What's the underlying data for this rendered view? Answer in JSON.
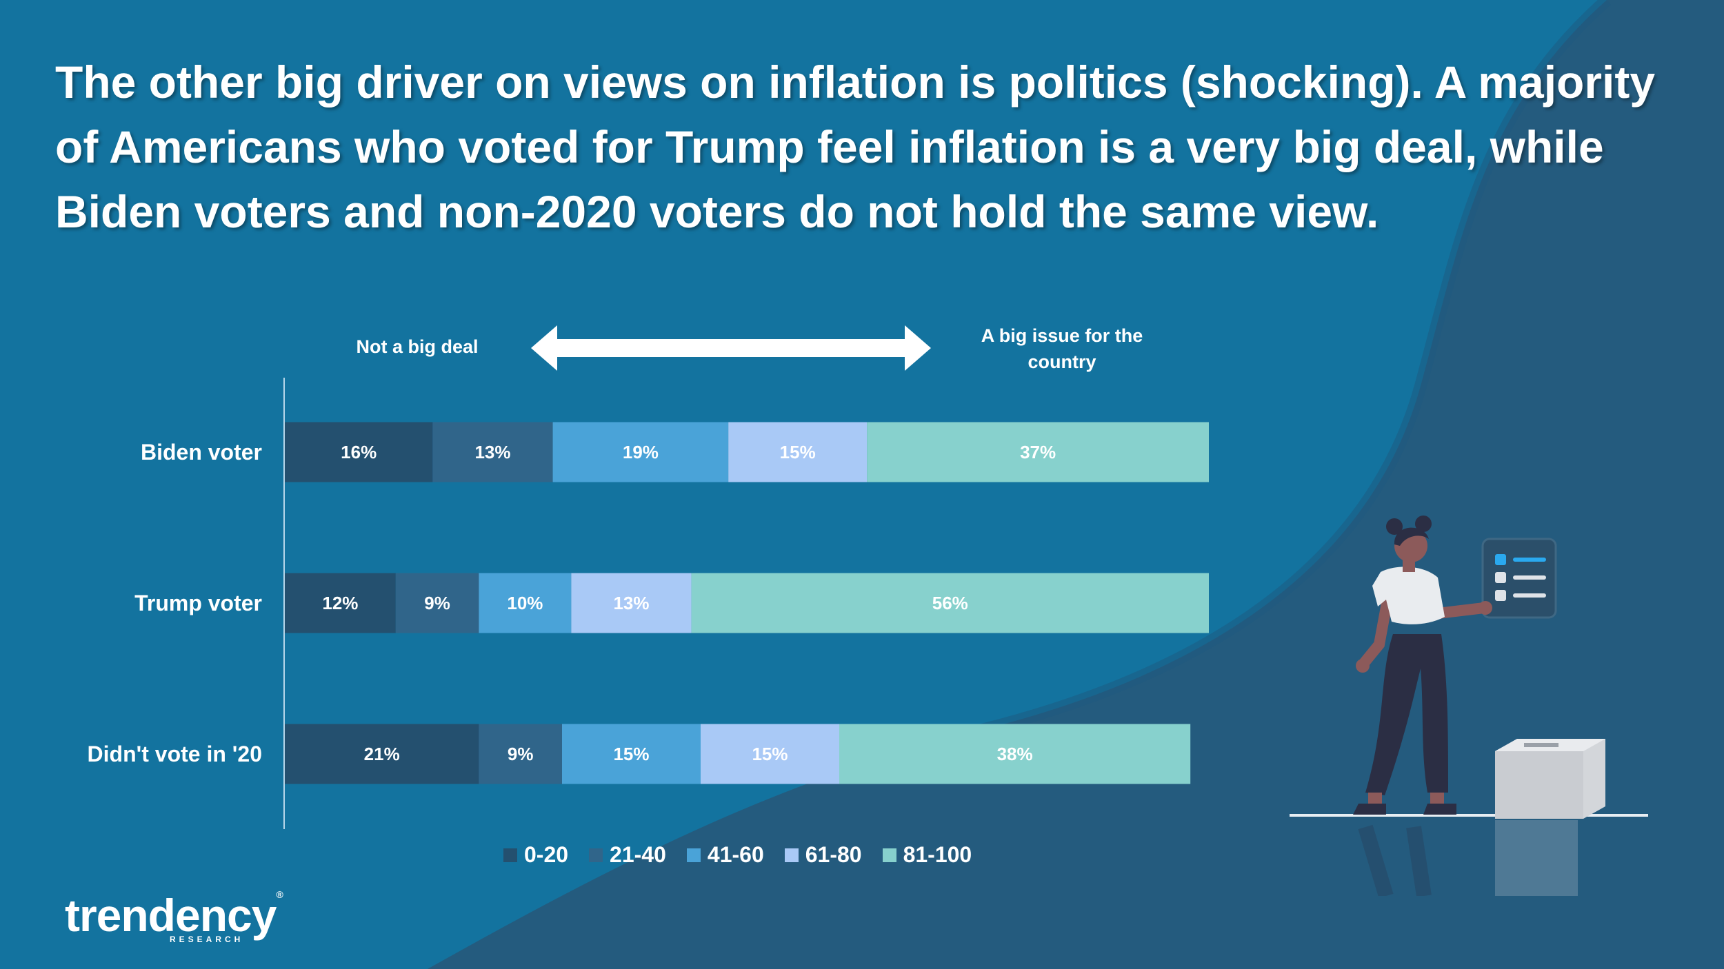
{
  "headline": "The other big driver on views on inflation is politics (shocking). A majority of Americans who voted for Trump feel inflation is a very big deal, while Biden voters and non-2020 voters do not hold the same view.",
  "scale": {
    "left_label": "Not a big deal",
    "right_label": "A big issue for the country"
  },
  "brand": {
    "name": "trendency",
    "sub": "RESEARCH"
  },
  "colors": {
    "background": "#13739f",
    "background_dark": "#245b7e",
    "s1": "#24506f",
    "s2": "#30658a",
    "s3": "#4aa3d8",
    "s4": "#a9c9f6",
    "s5": "#87d1cd"
  },
  "chart_data": {
    "type": "bar",
    "orientation": "horizontal",
    "stacked": true,
    "categories": [
      "Biden voter",
      "Trump voter",
      "Didn't vote in '20"
    ],
    "series": [
      {
        "name": "0-20",
        "values": [
          16,
          12,
          21
        ],
        "labels": [
          "16%",
          "12%",
          "21%"
        ],
        "color": "#24506f"
      },
      {
        "name": "21-40",
        "values": [
          13,
          9,
          9
        ],
        "labels": [
          "13%",
          "9%",
          "9%"
        ],
        "color": "#30658a"
      },
      {
        "name": "41-60",
        "values": [
          19,
          10,
          15
        ],
        "labels": [
          "19%",
          "10%",
          "15%"
        ],
        "color": "#4aa3d8"
      },
      {
        "name": "61-80",
        "values": [
          15,
          13,
          15
        ],
        "labels": [
          "15%",
          "13%",
          "15%"
        ],
        "color": "#a9c9f6"
      },
      {
        "name": "81-100",
        "values": [
          37,
          56,
          38
        ],
        "labels": [
          "37%",
          "56%",
          "38%"
        ],
        "color": "#87d1cd"
      }
    ],
    "xlim": [
      0,
      100
    ],
    "legend": "bottom",
    "grid": false
  }
}
